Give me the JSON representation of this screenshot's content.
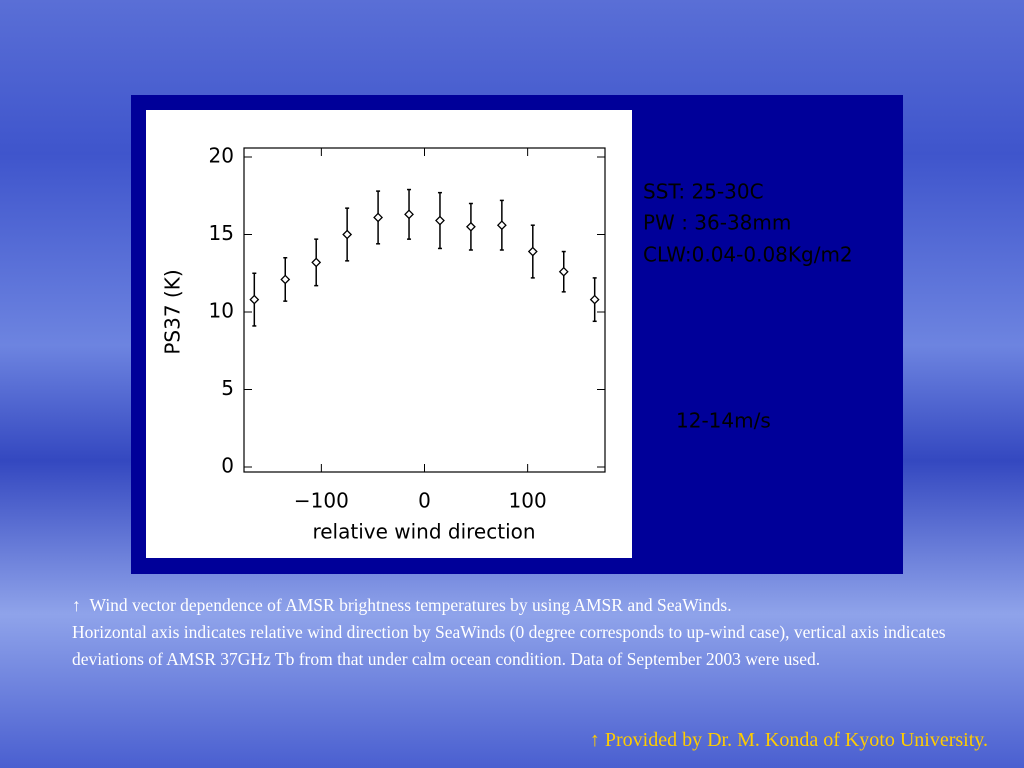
{
  "chart_data": {
    "type": "errorbar",
    "x_label": "relative wind direction",
    "y_label": "PS37 (K)",
    "x": [
      -165,
      -135,
      -105,
      -75,
      -45,
      -15,
      15,
      45,
      75,
      105,
      135,
      165
    ],
    "values": [
      10.8,
      12.1,
      13.2,
      15.0,
      16.1,
      16.3,
      15.9,
      15.5,
      15.6,
      13.9,
      12.6,
      10.8
    ],
    "errors": [
      1.7,
      1.4,
      1.5,
      1.7,
      1.7,
      1.6,
      1.8,
      1.5,
      1.6,
      1.7,
      1.3,
      1.4
    ],
    "color": "#000000",
    "xlim": [
      -175,
      175
    ],
    "xticks": [
      {
        "value": -100,
        "label": "−100"
      },
      0,
      100
    ],
    "ylim": [
      0,
      20
    ],
    "yticks": [
      0,
      5,
      10,
      15,
      20
    ],
    "grid": false,
    "annotations": [
      "SST: 25-30C",
      "PW : 36-38mm",
      "CLW:0.04-0.08Kg/m2",
      "12-14m/s"
    ]
  },
  "caption": [
    "↑  Wind vector dependence of AMSR brightness temperatures by using AMSR and SeaWinds.",
    "Horizontal axis indicates relative wind direction by SeaWinds (0 degree corresponds to up-wind case), vertical axis indicates deviations of AMSR 37GHz Tb from that under calm ocean condition. Data of September 2003 were used."
  ],
  "credit": "↑ Provided by Dr. M. Konda of Kyoto University."
}
